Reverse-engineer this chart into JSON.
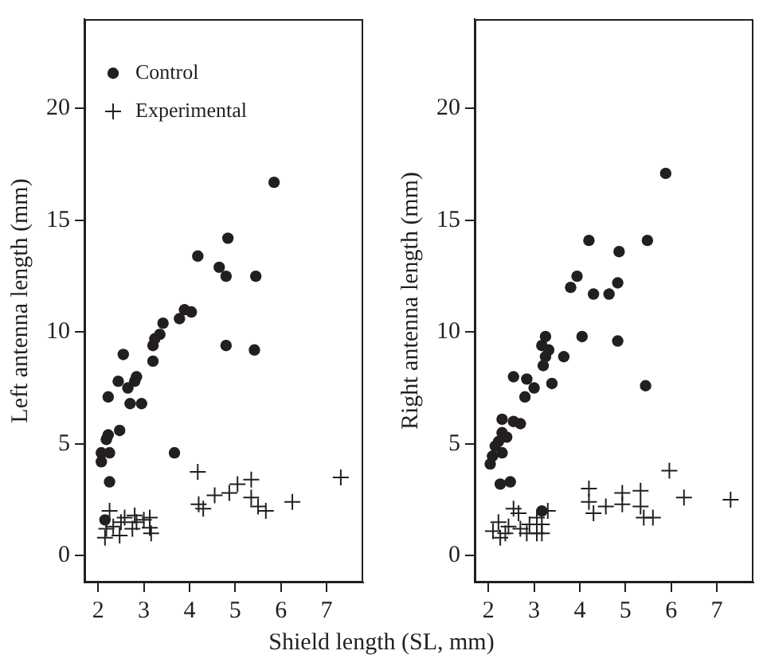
{
  "chart_data": [
    {
      "type": "scatter",
      "ylabel": "Left antenna length (mm)",
      "xlabel": "Shield length (SL, mm)",
      "xlim": [
        1.7,
        7.8
      ],
      "ylim": [
        -1.2,
        24
      ],
      "xticks": [
        2,
        3,
        4,
        5,
        6,
        7
      ],
      "yticks": [
        0,
        5,
        10,
        15,
        20
      ],
      "grid": false,
      "legend": "top left",
      "series": [
        {
          "name": "Control",
          "color": "#231f20",
          "marker": "circle",
          "x": [
            5.85,
            4.84,
            4.18,
            4.65,
            4.8,
            5.45,
            3.89,
            4.04,
            3.78,
            3.42,
            3.35,
            3.24,
            4.8,
            5.42,
            3.2,
            2.55,
            3.2,
            2.84,
            2.8,
            2.44,
            2.65,
            2.22,
            2.95,
            2.7,
            2.47,
            2.22,
            2.18,
            3.67,
            2.07,
            2.25,
            2.07,
            2.25,
            2.15
          ],
          "values": [
            16.7,
            14.2,
            13.4,
            12.9,
            12.5,
            12.5,
            11.0,
            10.9,
            10.6,
            10.4,
            9.9,
            9.7,
            9.4,
            9.2,
            9.4,
            9.0,
            8.7,
            8.0,
            7.8,
            7.8,
            7.5,
            7.1,
            6.8,
            6.8,
            5.6,
            5.4,
            5.2,
            4.6,
            4.6,
            4.6,
            4.2,
            3.3,
            1.6
          ]
        },
        {
          "name": "Experimental",
          "color": "#231f20",
          "marker": "cross",
          "x": [
            4.18,
            7.31,
            5.35,
            5.05,
            4.87,
            4.55,
            5.35,
            5.5,
            5.67,
            6.25,
            4.2,
            4.3,
            2.25,
            2.58,
            2.8,
            3.13,
            2.84,
            2.33,
            2.18,
            3.13,
            2.75,
            2.47,
            2.15,
            3.16,
            2.5,
            3.0
          ],
          "values": [
            3.75,
            3.5,
            3.4,
            3.2,
            2.8,
            2.7,
            2.6,
            2.2,
            2.0,
            2.4,
            2.3,
            2.1,
            2.0,
            1.7,
            1.8,
            1.7,
            1.5,
            1.3,
            1.2,
            1.25,
            1.2,
            0.9,
            0.8,
            1.0,
            1.5,
            1.6
          ]
        }
      ]
    },
    {
      "type": "scatter",
      "ylabel": "Right antenna length (mm)",
      "xlim": [
        1.7,
        7.8
      ],
      "ylim": [
        -1.2,
        24
      ],
      "xticks": [
        2,
        3,
        4,
        5,
        6,
        7
      ],
      "yticks": [
        0,
        5,
        10,
        15,
        20
      ],
      "grid": false,
      "series": [
        {
          "color": "#231f20",
          "marker": "circle",
          "x": [
            5.88,
            4.2,
            5.48,
            4.86,
            3.94,
            3.8,
            4.83,
            4.64,
            4.3,
            4.05,
            4.83,
            3.25,
            3.17,
            3.32,
            3.65,
            3.25,
            3.2,
            2.55,
            2.84,
            3.39,
            5.44,
            3.0,
            2.8,
            2.3,
            2.55,
            2.7,
            2.3,
            2.4,
            2.22,
            2.15,
            2.3,
            2.04,
            2.09,
            2.48,
            2.26,
            3.17
          ],
          "values": [
            17.1,
            14.1,
            14.1,
            13.6,
            12.5,
            12.0,
            12.2,
            11.7,
            11.7,
            9.8,
            9.6,
            9.8,
            9.4,
            9.2,
            8.9,
            8.9,
            8.5,
            8.0,
            7.9,
            7.7,
            7.6,
            7.5,
            7.1,
            6.1,
            6.0,
            5.9,
            5.5,
            5.3,
            5.1,
            4.9,
            4.6,
            4.1,
            4.45,
            3.3,
            3.2,
            2.0
          ]
        },
        {
          "color": "#231f20",
          "marker": "cross",
          "x": [
            5.96,
            4.2,
            5.33,
            4.93,
            6.28,
            4.2,
            4.57,
            4.93,
            5.33,
            4.3,
            5.6,
            5.4,
            2.55,
            2.66,
            3.3,
            3.06,
            3.17,
            2.22,
            2.44,
            2.9,
            2.7,
            2.1,
            2.37,
            2.84,
            3.06,
            3.17,
            2.26,
            7.3
          ],
          "values": [
            3.8,
            3.0,
            2.9,
            2.8,
            2.6,
            2.4,
            2.2,
            2.3,
            2.2,
            1.9,
            1.7,
            1.7,
            2.1,
            1.9,
            2.0,
            1.7,
            1.4,
            1.5,
            1.3,
            1.4,
            1.2,
            1.1,
            1.0,
            1.0,
            1.0,
            1.0,
            0.8,
            2.5
          ]
        }
      ]
    }
  ]
}
